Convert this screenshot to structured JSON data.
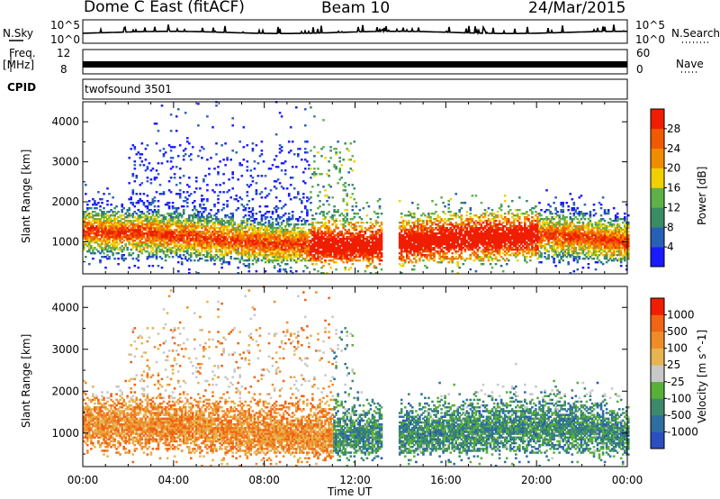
{
  "header": {
    "station": "Dome C East (fitACF)",
    "beam": "Beam 10",
    "date": "24/Mar/2015"
  },
  "status_panels": {
    "nsky_label": "N.Sky",
    "nsearch_label": "N.Search",
    "nsky_ticks": [
      "10^5",
      "10^0"
    ],
    "nsky_right_ticks": [
      "10^5",
      "10^0"
    ],
    "freq_label": "Freq.",
    "freq_unit": "[MHz]",
    "freq_ticks": [
      "12",
      "8"
    ],
    "nave_label": "Nave",
    "nave_ticks": [
      "60",
      "0"
    ],
    "cpid_label": "CPID",
    "cpid_value": "twofsound 3501"
  },
  "colors": {
    "power_scale": [
      "#1a1aff",
      "#2860b8",
      "#3a8c64",
      "#5fb048",
      "#f0d000",
      "#f08c00",
      "#f05a00",
      "#f01e00"
    ],
    "velocity_scale": [
      "#2a4fc0",
      "#2f6ea0",
      "#3c8a6a",
      "#58b038",
      "#c8c8c8",
      "#e6b450",
      "#f08c28",
      "#f06414",
      "#f01e00"
    ]
  },
  "chart_data": [
    {
      "type": "heatmap",
      "name": "power",
      "ylabel": "Slant Range [km]",
      "yticks": [
        1000,
        2000,
        3000,
        4000
      ],
      "ylim": [
        200,
        4500
      ],
      "colorbar_label": "Power [dB]",
      "colorbar_ticks": [
        "4",
        "8",
        "12",
        "16",
        "20",
        "24",
        "28"
      ],
      "colorbar_range": [
        0,
        30
      ]
    },
    {
      "type": "heatmap",
      "name": "velocity",
      "ylabel": "Slant Range [km]",
      "yticks": [
        1000,
        2000,
        3000,
        4000
      ],
      "ylim": [
        200,
        4500
      ],
      "colorbar_label": "Velocity [m s^-1]",
      "colorbar_ticks": [
        "-1000",
        "-500",
        "-100",
        "-25",
        "25",
        "100",
        "500",
        "1000"
      ]
    }
  ],
  "x_axis": {
    "label": "Time UT",
    "ticks": [
      "00:00",
      "04:00",
      "08:00",
      "12:00",
      "16:00",
      "20:00",
      "00:00"
    ],
    "range_hours": [
      0,
      24
    ]
  },
  "ionosphere_band": {
    "center_km": [
      [
        0,
        1250
      ],
      [
        2,
        1200
      ],
      [
        4,
        1150
      ],
      [
        6,
        1050
      ],
      [
        8,
        950
      ],
      [
        10,
        900
      ],
      [
        12,
        900
      ],
      [
        14,
        950
      ],
      [
        16,
        1050
      ],
      [
        18,
        1100
      ],
      [
        20,
        1150
      ],
      [
        22,
        1100
      ],
      [
        24,
        950
      ]
    ],
    "gap_hours": [
      13.2,
      13.9
    ]
  }
}
